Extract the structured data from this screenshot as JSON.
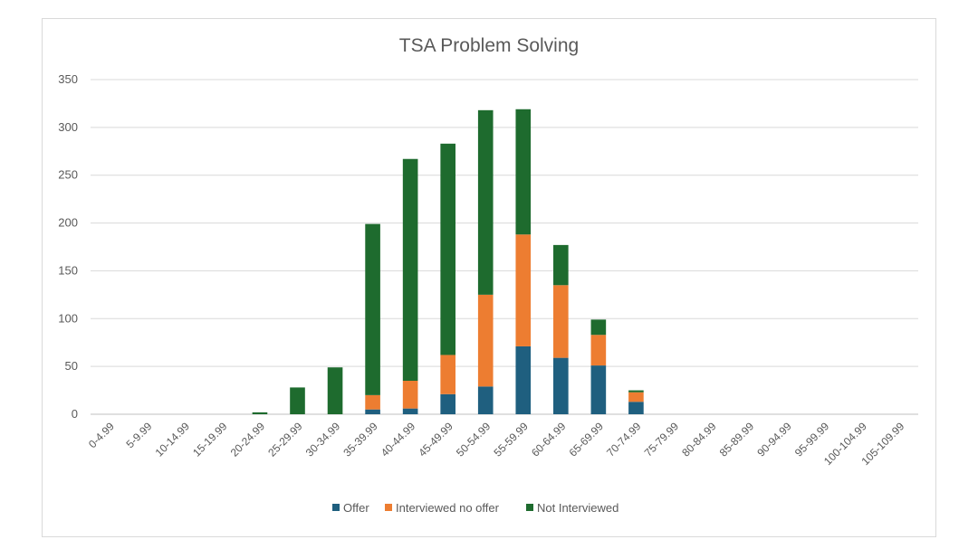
{
  "chart_data": {
    "type": "bar",
    "stacked": true,
    "title": "TSA Problem Solving",
    "categories": [
      "0-4.99",
      "5-9.99",
      "10-14.99",
      "15-19.99",
      "20-24.99",
      "25-29.99",
      "30-34.99",
      "35-39.99",
      "40-44.99",
      "45-49.99",
      "50-54.99",
      "55-59.99",
      "60-64.99",
      "65-69.99",
      "70-74.99",
      "75-79.99",
      "80-84.99",
      "85-89.99",
      "90-94.99",
      "95-99.99",
      "100-104.99",
      "105-109.99"
    ],
    "series": [
      {
        "name": "Offer",
        "color": "#1f5f7f",
        "values": [
          0,
          0,
          0,
          0,
          0,
          0,
          0,
          5,
          6,
          21,
          29,
          71,
          59,
          51,
          13,
          0,
          0,
          0,
          0,
          0,
          0,
          0
        ]
      },
      {
        "name": "Interviewed no offer",
        "color": "#ed7d31",
        "values": [
          0,
          0,
          0,
          0,
          0,
          0,
          0,
          15,
          29,
          41,
          96,
          117,
          76,
          32,
          10,
          0,
          0,
          0,
          0,
          0,
          0,
          0
        ]
      },
      {
        "name": "Not Interviewed",
        "color": "#1e6b2e",
        "values": [
          0,
          0,
          0,
          0,
          2,
          28,
          49,
          179,
          232,
          221,
          193,
          131,
          42,
          16,
          2,
          0,
          0,
          0,
          0,
          0,
          0,
          0
        ]
      }
    ],
    "ylim": [
      0,
      350
    ],
    "yticks": [
      0,
      50,
      100,
      150,
      200,
      250,
      300,
      350
    ],
    "grid": true,
    "legend_position": "bottom"
  }
}
